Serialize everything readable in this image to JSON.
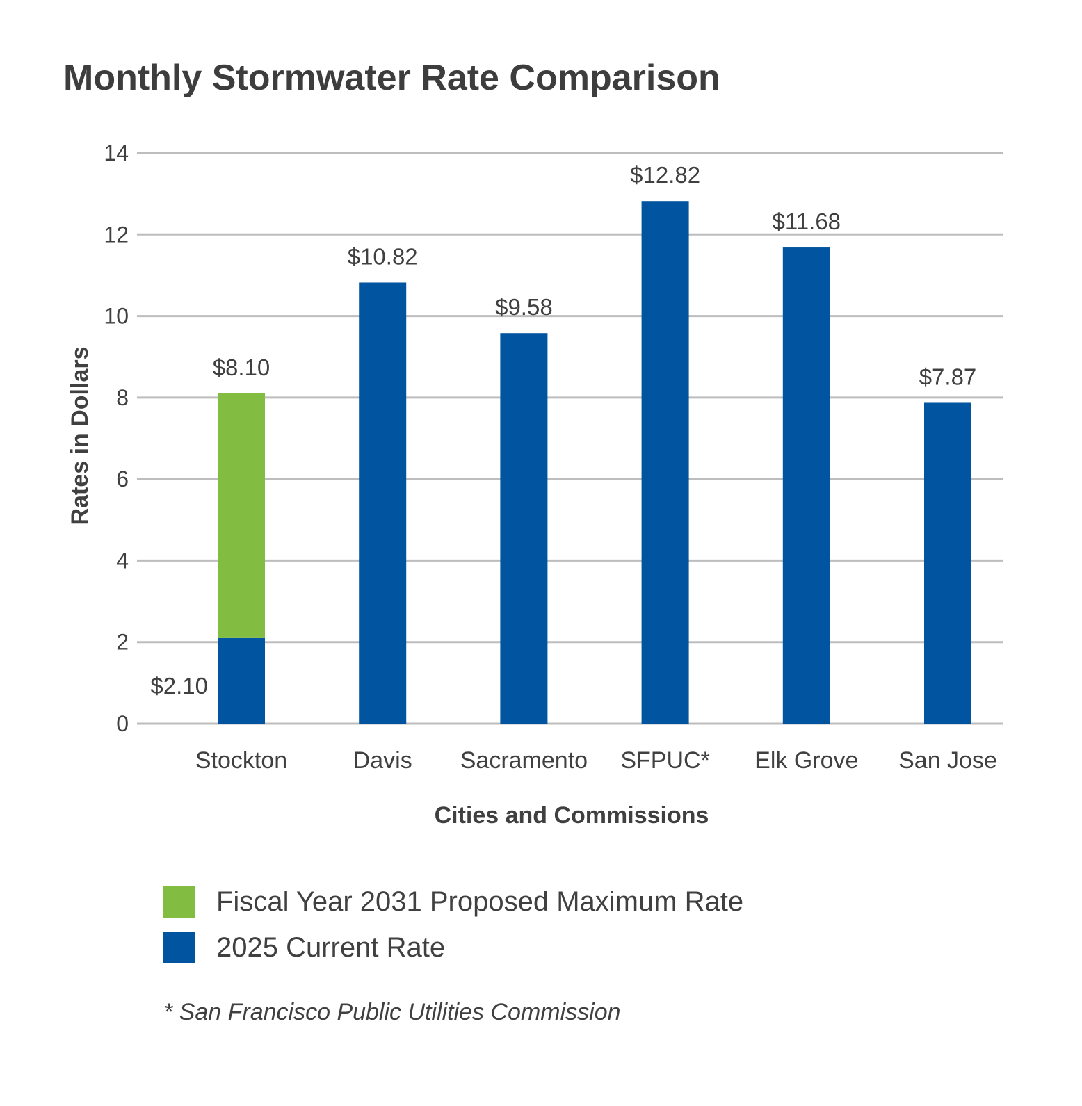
{
  "chart_data": {
    "type": "bar",
    "stacked": true,
    "title": "Monthly Stormwater Rate Comparison",
    "xlabel": "Cities and Commissions",
    "ylabel": "Rates in Dollars",
    "ylim": [
      0,
      14
    ],
    "yticks": [
      0,
      2,
      4,
      6,
      8,
      10,
      12,
      14
    ],
    "grid": true,
    "legend_position": "bottom",
    "categories": [
      "Stockton",
      "Davis",
      "Sacramento",
      "SFPUC*",
      "Elk Grove",
      "San Jose"
    ],
    "series": [
      {
        "name": "2025 Current Rate",
        "color": "#0054a0",
        "values": [
          2.1,
          10.82,
          9.58,
          12.82,
          11.68,
          7.87
        ],
        "labels": [
          "$2.10",
          "$10.82",
          "$9.58",
          "$12.82",
          "$11.68",
          "$7.87"
        ]
      },
      {
        "name": "Fiscal Year 2031 Proposed Maximum Rate",
        "color": "#82bd41",
        "values": [
          8.1,
          null,
          null,
          null,
          null,
          null
        ],
        "labels": [
          "$8.10",
          null,
          null,
          null,
          null,
          null
        ]
      }
    ],
    "footnote": "* San Francisco Public Utilities Commission"
  }
}
